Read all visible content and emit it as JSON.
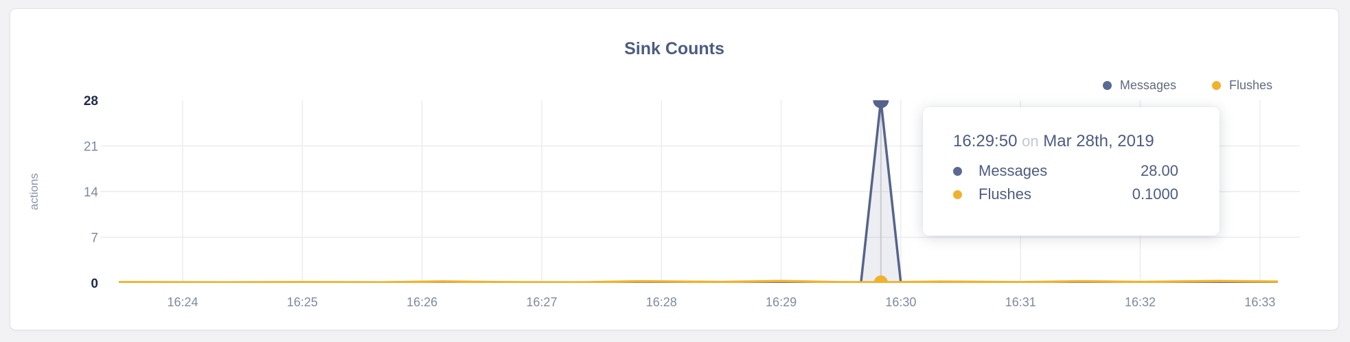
{
  "card": {
    "title": "Sink Counts"
  },
  "legend": {
    "items": [
      {
        "label": "Messages",
        "color": "#5b6a92"
      },
      {
        "label": "Flushes",
        "color": "#f0b22d"
      }
    ]
  },
  "tooltip": {
    "time": "16:29:50",
    "preposition": "on",
    "date": "Mar 28th, 2019",
    "rows": [
      {
        "label": "Messages",
        "value": "28.00",
        "color": "#5b6a92"
      },
      {
        "label": "Flushes",
        "value": "0.1000",
        "color": "#f0b22d"
      }
    ]
  },
  "chart_data": {
    "type": "area",
    "title": "Sink Counts",
    "xlabel": "",
    "ylabel": "actions",
    "x_domain": [
      "16:23:28",
      "16:33:09"
    ],
    "ylim": [
      0,
      28
    ],
    "x_ticks": [
      "16:24",
      "16:25",
      "16:26",
      "16:27",
      "16:28",
      "16:29",
      "16:30",
      "16:31",
      "16:32",
      "16:33"
    ],
    "y_ticks": [
      0,
      7,
      14,
      21,
      28
    ],
    "grid": true,
    "legend_position": "top-right",
    "hover": {
      "time": "16:29:50",
      "date": "Mar 28th, 2019"
    },
    "series": [
      {
        "name": "Messages",
        "color": "#56648c",
        "fill": "rgba(88,102,141,0.11)",
        "hover_value": 28,
        "points": [
          [
            "16:23:28",
            0
          ],
          [
            "16:25:00",
            0
          ],
          [
            "16:27:00",
            0
          ],
          [
            "16:29:00",
            0
          ],
          [
            "16:29:40",
            0
          ],
          [
            "16:29:50",
            28
          ],
          [
            "16:30:00",
            0
          ],
          [
            "16:31:00",
            0
          ],
          [
            "16:32:00",
            0
          ],
          [
            "16:33:09",
            0
          ]
        ]
      },
      {
        "name": "Flushes",
        "color": "#f0b22d",
        "fill": null,
        "hover_value": 0.1,
        "points": [
          [
            "16:23:28",
            0.12
          ],
          [
            "16:24:20",
            0.1
          ],
          [
            "16:25:00",
            0.12
          ],
          [
            "16:25:40",
            0.1
          ],
          [
            "16:26:10",
            0.22
          ],
          [
            "16:26:40",
            0.12
          ],
          [
            "16:27:20",
            0.1
          ],
          [
            "16:27:50",
            0.25
          ],
          [
            "16:28:30",
            0.15
          ],
          [
            "16:29:00",
            0.28
          ],
          [
            "16:29:30",
            0.12
          ],
          [
            "16:29:50",
            0.1
          ],
          [
            "16:30:20",
            0.2
          ],
          [
            "16:31:00",
            0.12
          ],
          [
            "16:31:30",
            0.25
          ],
          [
            "16:32:00",
            0.15
          ],
          [
            "16:32:40",
            0.28
          ],
          [
            "16:33:09",
            0.2
          ]
        ]
      }
    ],
    "style": {
      "grid_color": "#ececee",
      "crosshair_color": "#d8d8dc",
      "tick_color": "#7e89a1",
      "tick_emphasis_color": "#1f2a49"
    }
  }
}
